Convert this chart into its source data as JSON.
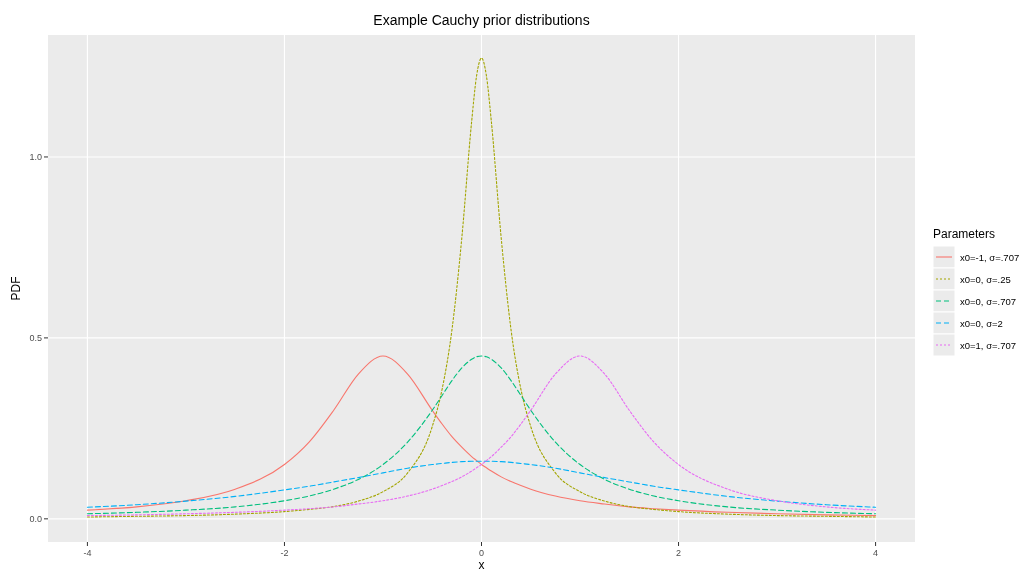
{
  "chart_data": {
    "type": "line",
    "title": "Example Cauchy prior distributions",
    "xlabel": "x",
    "ylabel": "PDF",
    "legend_title": "Parameters",
    "legend": "right",
    "grid": true,
    "marker": "none",
    "x": [
      -4,
      -3.5,
      -3,
      -2.5,
      -2,
      -1.75,
      -1.5,
      -1.25,
      -1,
      -0.75,
      -0.5,
      -0.4,
      -0.3,
      -0.2,
      -0.1,
      -0.05,
      0,
      0.05,
      0.1,
      0.2,
      0.3,
      0.4,
      0.5,
      0.75,
      1,
      1.25,
      1.5,
      1.75,
      2,
      2.5,
      3,
      3.5,
      4
    ],
    "xlim": [
      -4.4,
      4.4
    ],
    "xticks": [
      -4,
      -2,
      0,
      2,
      4
    ],
    "ylim": [
      -0.064,
      1.337
    ],
    "yticks": [
      {
        "value": 0,
        "label": "0.0"
      },
      {
        "value": 0.5,
        "label": "0.5"
      },
      {
        "value": 1,
        "label": "1.0"
      }
    ],
    "series": [
      {
        "name": "x0=-1, σ=.707",
        "color": "#f8766d",
        "line_style": "solid",
        "values": [
          0.024,
          0.033,
          0.05,
          0.082,
          0.15,
          0.212,
          0.3,
          0.4,
          0.45,
          0.4,
          0.3,
          0.262,
          0.227,
          0.198,
          0.172,
          0.161,
          0.15,
          0.141,
          0.132,
          0.116,
          0.103,
          0.092,
          0.082,
          0.063,
          0.05,
          0.041,
          0.033,
          0.028,
          0.024,
          0.018,
          0.014,
          0.011,
          0.009
        ]
      },
      {
        "name": "x0=0, σ=.25",
        "color": "#a3a500",
        "line_style": "dotted",
        "values": [
          0.005,
          0.007,
          0.009,
          0.013,
          0.02,
          0.026,
          0.034,
          0.049,
          0.075,
          0.127,
          0.255,
          0.358,
          0.522,
          0.776,
          1.098,
          1.224,
          1.273,
          1.224,
          1.098,
          0.776,
          0.522,
          0.358,
          0.255,
          0.127,
          0.075,
          0.049,
          0.034,
          0.026,
          0.02,
          0.013,
          0.009,
          0.007,
          0.005
        ]
      },
      {
        "name": "x0=0, σ=.707",
        "color": "#00bf7d",
        "line_style": "dashed",
        "values": [
          0.014,
          0.018,
          0.024,
          0.033,
          0.05,
          0.063,
          0.082,
          0.109,
          0.15,
          0.212,
          0.3,
          0.341,
          0.382,
          0.417,
          0.441,
          0.448,
          0.45,
          0.448,
          0.441,
          0.417,
          0.382,
          0.341,
          0.3,
          0.212,
          0.15,
          0.109,
          0.082,
          0.063,
          0.05,
          0.033,
          0.024,
          0.018,
          0.014
        ]
      },
      {
        "name": "x0=0, σ=2",
        "color": "#00b0f6",
        "line_style": "dashed",
        "values": [
          0.032,
          0.039,
          0.049,
          0.062,
          0.08,
          0.09,
          0.102,
          0.114,
          0.127,
          0.14,
          0.15,
          0.153,
          0.156,
          0.158,
          0.159,
          0.159,
          0.159,
          0.159,
          0.159,
          0.158,
          0.156,
          0.153,
          0.15,
          0.14,
          0.127,
          0.114,
          0.102,
          0.09,
          0.08,
          0.062,
          0.049,
          0.039,
          0.032
        ]
      },
      {
        "name": "x0=1, σ=.707",
        "color": "#e76bf3",
        "line_style": "dotted",
        "values": [
          0.009,
          0.011,
          0.014,
          0.018,
          0.024,
          0.028,
          0.033,
          0.041,
          0.05,
          0.063,
          0.082,
          0.092,
          0.103,
          0.116,
          0.132,
          0.141,
          0.15,
          0.161,
          0.172,
          0.198,
          0.227,
          0.262,
          0.3,
          0.4,
          0.45,
          0.4,
          0.3,
          0.212,
          0.15,
          0.082,
          0.05,
          0.033,
          0.024
        ]
      }
    ]
  }
}
